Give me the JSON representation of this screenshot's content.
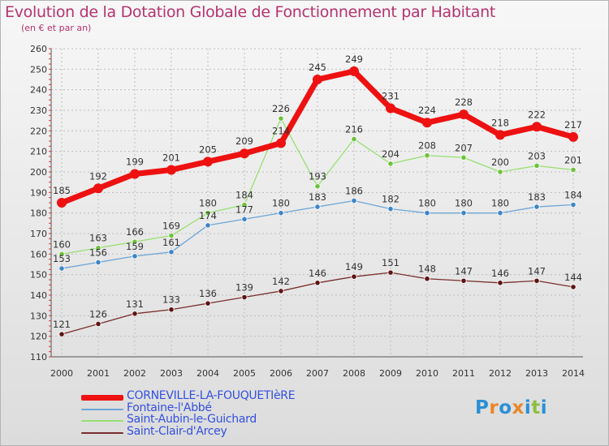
{
  "header": {
    "title": "Evolution de la Dotation Globale de Fonctionnement par Habitant",
    "subtitle": "(en € et par an)"
  },
  "brand": {
    "letters": [
      "P",
      "r",
      "o",
      "x",
      "i",
      "t",
      "i"
    ],
    "colors": [
      "#2b8fd6",
      "#e8862b",
      "#2b8fd6",
      "#e8862b",
      "#2b8fd6",
      "#8dbf3f",
      "#2b8fd6"
    ]
  },
  "chart_data": {
    "type": "line",
    "title": "Evolution de la Dotation Globale de Fonctionnement par Habitant",
    "subtitle": "(en € et par an)",
    "x": [
      "2000",
      "2001",
      "2002",
      "2003",
      "2004",
      "2005",
      "2006",
      "2007",
      "2008",
      "2009",
      "2010",
      "2011",
      "2012",
      "2013",
      "2014"
    ],
    "ylim": [
      110,
      260
    ],
    "yticks": [
      110,
      120,
      130,
      140,
      150,
      160,
      170,
      180,
      190,
      200,
      210,
      220,
      230,
      240,
      250,
      260
    ],
    "grid": true,
    "legend_position": "bottom-left",
    "series": [
      {
        "name": "CORNEVILLE-LA-FOUQUETIèRE",
        "color": "#ee1111",
        "marker_fill": "#ee1111",
        "values": [
          185,
          192,
          199,
          201,
          205,
          209,
          214,
          245,
          249,
          231,
          224,
          228,
          218,
          222,
          217
        ]
      },
      {
        "name": "Fontaine-l'Abbé",
        "color": "#6ea6d8",
        "marker_fill": "#3d85c6",
        "values": [
          153,
          156,
          159,
          161,
          174,
          177,
          180,
          183,
          186,
          182,
          180,
          180,
          180,
          183,
          184
        ]
      },
      {
        "name": "Saint-Aubin-le-Guichard",
        "color": "#98e070",
        "marker_fill": "#6cc33c",
        "values": [
          160,
          163,
          166,
          169,
          180,
          184,
          226,
          193,
          216,
          204,
          208,
          207,
          200,
          203,
          201
        ]
      },
      {
        "name": "Saint-Clair-d'Arcey",
        "color": "#7a2e2e",
        "marker_fill": "#5e1414",
        "values": [
          121,
          126,
          131,
          133,
          136,
          139,
          142,
          146,
          149,
          151,
          148,
          147,
          146,
          147,
          144
        ]
      }
    ]
  }
}
